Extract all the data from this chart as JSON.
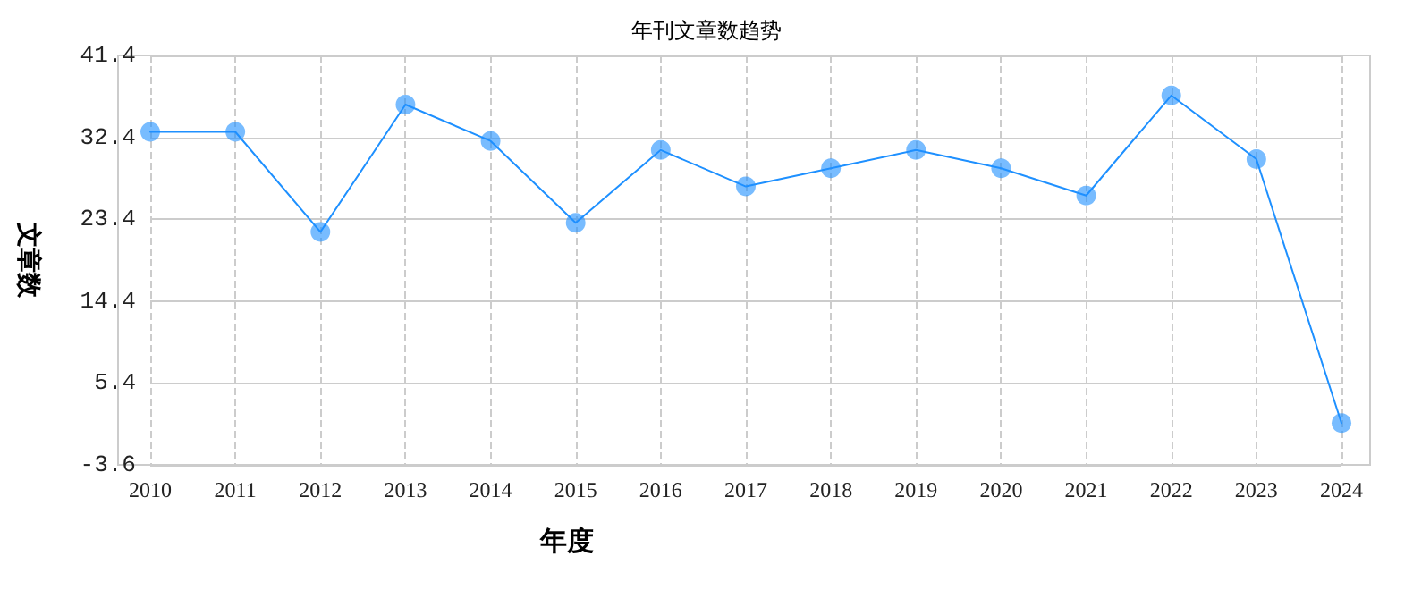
{
  "chart_data": {
    "type": "line",
    "title": "年刊文章数趋势",
    "xlabel": "年度",
    "ylabel": "文章数",
    "categories": [
      "2010",
      "2011",
      "2012",
      "2013",
      "2014",
      "2015",
      "2016",
      "2017",
      "2018",
      "2019",
      "2020",
      "2021",
      "2022",
      "2023",
      "2024"
    ],
    "series": [
      {
        "color": "#1e90ff",
        "values": [
          33,
          33,
          22,
          36,
          32,
          23,
          31,
          27,
          29,
          31,
          29,
          26,
          37,
          30,
          1
        ]
      }
    ],
    "ylim": [
      -3.6,
      41.4
    ],
    "yticks": [
      -3.6,
      5.4,
      14.4,
      23.4,
      32.4,
      41.4
    ],
    "grid": true,
    "marker": "circle",
    "line_style": "solid"
  }
}
